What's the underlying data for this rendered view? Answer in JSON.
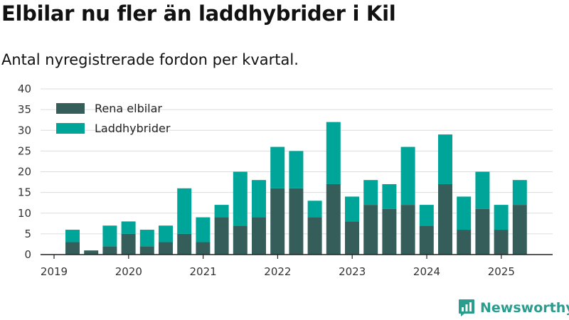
{
  "title": "Elbilar nu fler än laddhybrider i Kil",
  "subtitle": "Antal nyregistrerade fordon per kvartal.",
  "brand": {
    "name": "Newsworthy",
    "color": "#2a9d8f",
    "icon": "newsworthy-logo-icon"
  },
  "chart_data": {
    "type": "bar",
    "stacked": true,
    "categories": [
      "2019 Q2",
      "2019 Q3",
      "2019 Q4",
      "2020 Q1",
      "2020 Q2",
      "2020 Q3",
      "2020 Q4",
      "2021 Q1",
      "2021 Q2",
      "2021 Q3",
      "2021 Q4",
      "2022 Q1",
      "2022 Q2",
      "2022 Q3",
      "2022 Q4",
      "2023 Q1",
      "2023 Q2",
      "2023 Q3",
      "2023 Q4",
      "2024 Q1",
      "2024 Q2",
      "2024 Q3",
      "2024 Q4",
      "2025 Q1",
      "2025 Q2"
    ],
    "series": [
      {
        "name": "Rena elbilar",
        "color": "#355e5a",
        "values": [
          3,
          1,
          2,
          5,
          2,
          3,
          5,
          3,
          9,
          7,
          9,
          16,
          16,
          9,
          17,
          8,
          12,
          11,
          12,
          7,
          17,
          6,
          11,
          6,
          12
        ]
      },
      {
        "name": "Laddhybrider",
        "color": "#00a59a",
        "values": [
          3,
          0,
          5,
          3,
          4,
          4,
          11,
          6,
          3,
          13,
          9,
          10,
          9,
          4,
          15,
          6,
          6,
          6,
          14,
          5,
          12,
          8,
          9,
          6,
          6
        ]
      }
    ],
    "y_ticks": [
      "0",
      "5",
      "10",
      "15",
      "20",
      "25",
      "30",
      "35",
      "40"
    ],
    "x_tick_labels": [
      "2019",
      "2020",
      "2021",
      "2022",
      "2023",
      "2024",
      "2025"
    ],
    "ylim": [
      0,
      40
    ],
    "xlabel": "",
    "ylabel": "",
    "grid": "horizontal",
    "legend_position": "top-left"
  }
}
